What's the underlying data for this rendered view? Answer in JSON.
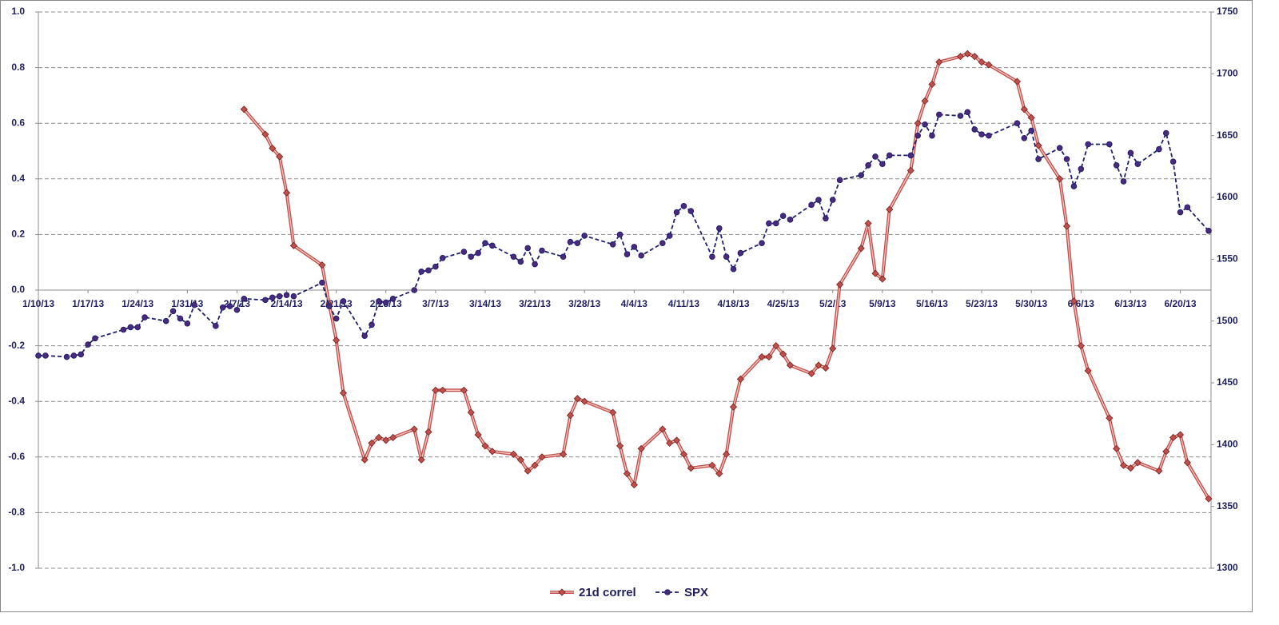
{
  "chart_data": {
    "type": "line",
    "x": [
      "1/10/13",
      "1/11/13",
      "1/14/13",
      "1/15/13",
      "1/16/13",
      "1/17/13",
      "1/18/13",
      "1/22/13",
      "1/23/13",
      "1/24/13",
      "1/25/13",
      "1/28/13",
      "1/29/13",
      "1/30/13",
      "1/31/13",
      "2/1/13",
      "2/4/13",
      "2/5/13",
      "2/6/13",
      "2/7/13",
      "2/8/13",
      "2/11/13",
      "2/12/13",
      "2/13/13",
      "2/14/13",
      "2/15/13",
      "2/19/13",
      "2/20/13",
      "2/21/13",
      "2/22/13",
      "2/25/13",
      "2/26/13",
      "2/27/13",
      "2/28/13",
      "3/1/13",
      "3/4/13",
      "3/5/13",
      "3/6/13",
      "3/7/13",
      "3/8/13",
      "3/11/13",
      "3/12/13",
      "3/13/13",
      "3/14/13",
      "3/15/13",
      "3/18/13",
      "3/19/13",
      "3/20/13",
      "3/21/13",
      "3/22/13",
      "3/25/13",
      "3/26/13",
      "3/27/13",
      "3/28/13",
      "4/1/13",
      "4/2/13",
      "4/3/13",
      "4/4/13",
      "4/5/13",
      "4/8/13",
      "4/9/13",
      "4/10/13",
      "4/11/13",
      "4/12/13",
      "4/15/13",
      "4/16/13",
      "4/17/13",
      "4/18/13",
      "4/19/13",
      "4/22/13",
      "4/23/13",
      "4/24/13",
      "4/25/13",
      "4/26/13",
      "4/29/13",
      "4/30/13",
      "5/1/13",
      "5/2/13",
      "5/3/13",
      "5/6/13",
      "5/7/13",
      "5/8/13",
      "5/9/13",
      "5/10/13",
      "5/13/13",
      "5/14/13",
      "5/15/13",
      "5/16/13",
      "5/17/13",
      "5/20/13",
      "5/21/13",
      "5/22/13",
      "5/23/13",
      "5/24/13",
      "5/28/13",
      "5/29/13",
      "5/30/13",
      "5/31/13",
      "6/3/13",
      "6/4/13",
      "6/5/13",
      "6/6/13",
      "6/7/13",
      "6/10/13",
      "6/11/13",
      "6/12/13",
      "6/13/13",
      "6/14/13",
      "6/17/13",
      "6/18/13",
      "6/19/13",
      "6/20/13",
      "6/21/13",
      "6/24/13"
    ],
    "series": [
      {
        "name": "21d correl",
        "color": "#c0504d",
        "marker": "diamond",
        "values": [
          null,
          null,
          null,
          null,
          null,
          null,
          null,
          null,
          null,
          null,
          null,
          null,
          null,
          null,
          null,
          null,
          null,
          null,
          null,
          null,
          0.65,
          0.56,
          0.51,
          0.48,
          0.35,
          0.16,
          0.09,
          -0.05,
          -0.18,
          -0.37,
          -0.61,
          -0.55,
          -0.53,
          -0.54,
          -0.53,
          -0.5,
          -0.61,
          -0.51,
          -0.36,
          -0.36,
          -0.36,
          -0.44,
          -0.52,
          -0.56,
          -0.58,
          -0.59,
          -0.61,
          -0.65,
          -0.63,
          -0.6,
          -0.59,
          -0.45,
          -0.39,
          -0.4,
          -0.44,
          -0.56,
          -0.66,
          -0.7,
          -0.57,
          -0.5,
          -0.55,
          -0.54,
          -0.59,
          -0.64,
          -0.63,
          -0.66,
          -0.59,
          -0.42,
          -0.32,
          -0.24,
          -0.24,
          -0.2,
          -0.23,
          -0.27,
          -0.3,
          -0.27,
          -0.28,
          -0.21,
          0.02,
          0.15,
          0.24,
          0.06,
          0.04,
          0.29,
          0.43,
          0.6,
          0.68,
          0.74,
          0.82,
          0.84,
          0.85,
          0.84,
          0.82,
          0.81,
          0.75,
          0.65,
          0.62,
          0.52,
          0.4,
          0.23,
          -0.04,
          -0.2,
          -0.29,
          -0.46,
          -0.57,
          -0.63,
          -0.64,
          -0.62,
          -0.65,
          -0.58,
          -0.53,
          -0.52,
          -0.62,
          -0.75
        ]
      },
      {
        "name": "SPX",
        "color": "#1f1f6e",
        "marker": "circle",
        "dashed": true,
        "axis": "y2",
        "values": [
          1472,
          1472,
          1471,
          1472,
          1473,
          1481,
          1486,
          1493,
          1495,
          1495,
          1503,
          1500,
          1508,
          1502,
          1498,
          1513,
          1496,
          1511,
          1512,
          1509,
          1518,
          1517,
          1519,
          1520,
          1521,
          1520,
          1531,
          1512,
          1502,
          1516,
          1488,
          1497,
          1516,
          1515,
          1518,
          1525,
          1540,
          1541,
          1544,
          1551,
          1556,
          1552,
          1555,
          1563,
          1561,
          1552,
          1548,
          1559,
          1546,
          1557,
          1552,
          1564,
          1563,
          1569,
          1562,
          1570,
          1554,
          1560,
          1553,
          1563,
          1569,
          1588,
          1593,
          1589,
          1552,
          1575,
          1552,
          1542,
          1555,
          1563,
          1579,
          1579,
          1585,
          1582,
          1594,
          1598,
          1583,
          1598,
          1614,
          1618,
          1626,
          1633,
          1627,
          1634,
          1634,
          1650,
          1659,
          1650,
          1667,
          1666,
          1669,
          1655,
          1651,
          1650,
          1660,
          1648,
          1654,
          1631,
          1640,
          1631,
          1609,
          1623,
          1643,
          1643,
          1626,
          1613,
          1636,
          1627,
          1639,
          1652,
          1629,
          1588,
          1592,
          1573
        ]
      }
    ],
    "xlim": [
      "1/10/13",
      "6/24/13"
    ],
    "xticks": [
      "1/10/13",
      "1/17/13",
      "1/24/13",
      "1/31/13",
      "2/7/13",
      "2/14/13",
      "2/21/13",
      "2/28/13",
      "3/7/13",
      "3/14/13",
      "3/21/13",
      "3/28/13",
      "4/4/13",
      "4/11/13",
      "4/18/13",
      "4/25/13",
      "5/2/13",
      "5/9/13",
      "5/16/13",
      "5/23/13",
      "5/30/13",
      "6/6/13",
      "6/13/13",
      "6/20/13"
    ],
    "ylim": [
      -1,
      1
    ],
    "yticks": [
      {
        "value": -1,
        "label": "-1.0"
      },
      -0.8,
      -0.6,
      -0.4,
      -0.2,
      {
        "value": 0,
        "label": "0.0"
      },
      0.2,
      0.4,
      0.6,
      0.8,
      {
        "value": 1,
        "label": "1.0"
      }
    ],
    "y2lim": [
      1300,
      1750
    ],
    "y2ticks": [
      1300,
      1350,
      1400,
      1450,
      1500,
      1550,
      1600,
      1650,
      1700,
      1750
    ],
    "grid": true,
    "legend": "bottom"
  }
}
